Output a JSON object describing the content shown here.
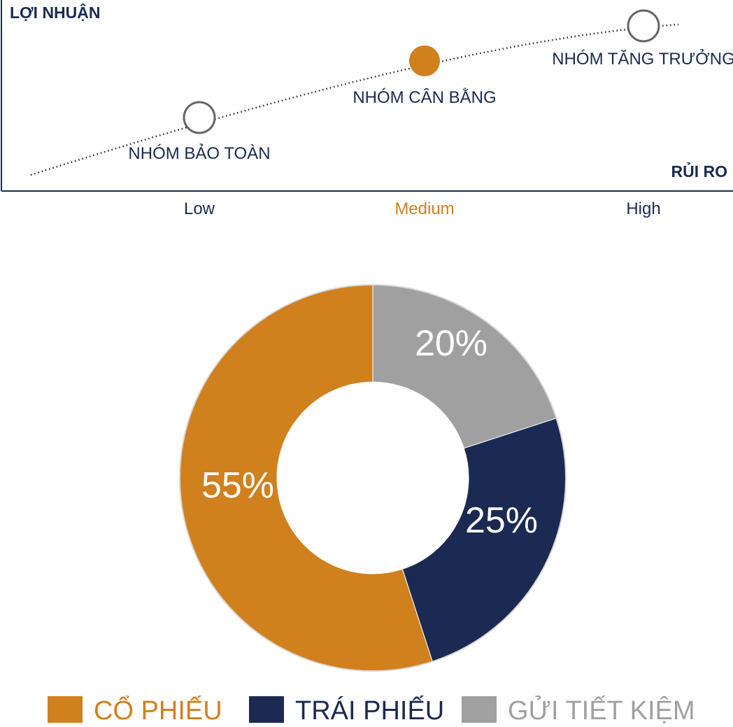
{
  "chart_data": [
    {
      "type": "line",
      "ylabel": "LỢI NHUẬN",
      "xlabel": "RỦI RO",
      "categories": [
        "Low",
        "Medium",
        "High"
      ],
      "points": [
        {
          "label": "NHÓM BẢO TOÀN",
          "level": "Low",
          "x": 1,
          "y": 1,
          "selected": false
        },
        {
          "label": "NHÓM CÂN BẰNG",
          "level": "Medium",
          "x": 2,
          "y": 2,
          "selected": true
        },
        {
          "label": "NHÓM TĂNG TRƯỞNG",
          "level": "High",
          "x": 3,
          "y": 3,
          "selected": false
        }
      ],
      "grid": false,
      "colors": {
        "axis": "#1b2a52",
        "selected": "#d1801e",
        "marker_outline": "#666666",
        "medium_label": "#d1801e"
      }
    },
    {
      "type": "pie",
      "donut": true,
      "slices": [
        {
          "label": "CỔ PHIẾU",
          "value": 55,
          "text": "55%",
          "color": "#d1801e"
        },
        {
          "label": "TRÁI PHIẾU",
          "value": 25,
          "text": "25%",
          "color": "#1b2a52"
        },
        {
          "label": "GỬI TIẾT KIỆM",
          "value": 20,
          "text": "20%",
          "color": "#a0a0a0"
        }
      ],
      "legend_position": "bottom"
    }
  ]
}
